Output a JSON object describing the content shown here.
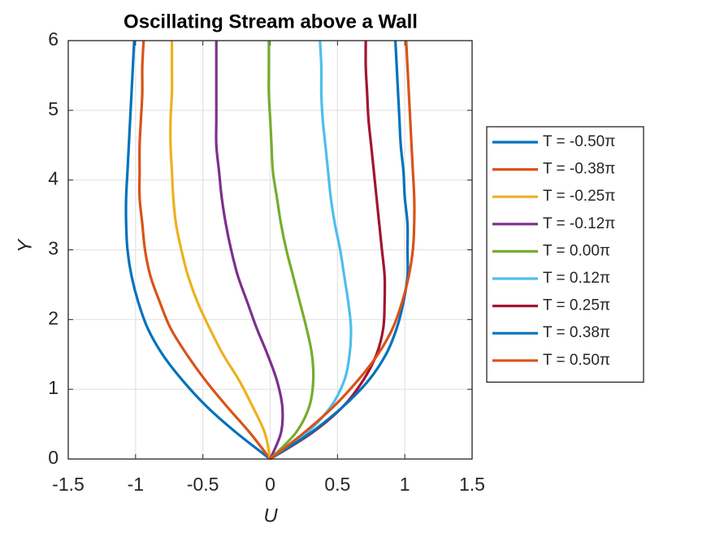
{
  "chart_data": {
    "type": "line",
    "title": "Oscillating Stream above a Wall",
    "x_label": "U",
    "y_label": "Y",
    "xlim": [
      -1.5,
      1.5
    ],
    "xticks": [
      -1.5,
      -1,
      -0.5,
      0,
      0.5,
      1,
      1.5
    ],
    "ylim": [
      0,
      6
    ],
    "yticks": [
      0,
      1,
      2,
      3,
      4,
      5,
      6
    ],
    "grid": true,
    "legend": "right",
    "y": [
      0,
      0.375,
      0.75,
      1.125,
      1.5,
      1.875,
      2.25,
      2.625,
      3,
      3.375,
      3.75,
      4.125,
      4.5,
      4.875,
      5.25,
      5.625,
      6
    ],
    "series": [
      {
        "name": "T = -0.50π",
        "color": "#0072BD",
        "x": [
          0,
          -0.25,
          -0.47,
          -0.65,
          -0.8,
          -0.91,
          -0.98,
          -1.03,
          -1.06,
          -1.07,
          -1.07,
          -1.06,
          -1.05,
          -1.04,
          -1.03,
          -1.02,
          -1.01
        ]
      },
      {
        "name": "T = -0.38π",
        "color": "#D95319",
        "x": [
          0,
          -0.15,
          -0.32,
          -0.48,
          -0.62,
          -0.74,
          -0.82,
          -0.89,
          -0.93,
          -0.95,
          -0.97,
          -0.97,
          -0.97,
          -0.96,
          -0.95,
          -0.95,
          -0.94
        ]
      },
      {
        "name": "T = -0.25π",
        "color": "#EDB120",
        "x": [
          0,
          -0.04,
          -0.13,
          -0.23,
          -0.35,
          -0.45,
          -0.54,
          -0.61,
          -0.66,
          -0.7,
          -0.72,
          -0.73,
          -0.74,
          -0.74,
          -0.73,
          -0.73,
          -0.73
        ]
      },
      {
        "name": "T = -0.12π",
        "color": "#7E2F8E",
        "x": [
          0,
          0.08,
          0.09,
          0.05,
          -0.02,
          -0.1,
          -0.17,
          -0.24,
          -0.29,
          -0.33,
          -0.36,
          -0.38,
          -0.4,
          -0.4,
          -0.4,
          -0.4,
          -0.4
        ]
      },
      {
        "name": "T = 0.00π",
        "color": "#77AC30",
        "x": [
          0,
          0.19,
          0.29,
          0.32,
          0.31,
          0.27,
          0.22,
          0.17,
          0.12,
          0.08,
          0.05,
          0.02,
          0.01,
          0,
          -0.01,
          -0.01,
          -0.01
        ]
      },
      {
        "name": "T = 0.12π",
        "color": "#4DBEEE",
        "x": [
          0,
          0.27,
          0.45,
          0.55,
          0.59,
          0.6,
          0.58,
          0.55,
          0.52,
          0.48,
          0.45,
          0.43,
          0.41,
          0.39,
          0.38,
          0.38,
          0.37
        ]
      },
      {
        "name": "T = 0.25π",
        "color": "#A2142F",
        "x": [
          0,
          0.31,
          0.54,
          0.69,
          0.79,
          0.84,
          0.85,
          0.85,
          0.83,
          0.81,
          0.79,
          0.77,
          0.75,
          0.73,
          0.72,
          0.71,
          0.71
        ]
      },
      {
        "name": "T = 0.38π",
        "color": "#0072BD",
        "x": [
          0,
          0.3,
          0.54,
          0.73,
          0.86,
          0.94,
          0.99,
          1.02,
          1.02,
          1.02,
          1,
          0.99,
          0.97,
          0.96,
          0.95,
          0.94,
          0.93
        ]
      },
      {
        "name": "T = 0.50π",
        "color": "#D95319",
        "x": [
          0,
          0.25,
          0.47,
          0.65,
          0.8,
          0.91,
          0.98,
          1.03,
          1.06,
          1.07,
          1.07,
          1.06,
          1.05,
          1.04,
          1.03,
          1.02,
          1.01
        ]
      }
    ]
  }
}
